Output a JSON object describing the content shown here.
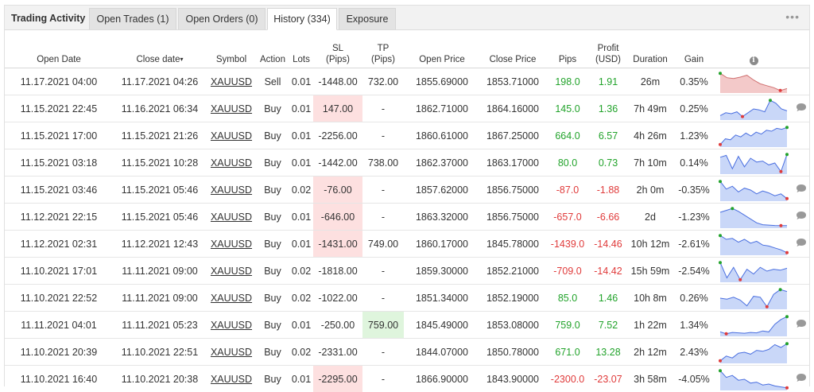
{
  "tabs": [
    {
      "label": "Trading Activity",
      "style": "plain"
    },
    {
      "label": "Open Trades (1)",
      "style": "gray"
    },
    {
      "label": "Open Orders (0)",
      "style": "gray"
    },
    {
      "label": "History (334)",
      "style": "active"
    },
    {
      "label": "Exposure",
      "style": "gray"
    }
  ],
  "menu_icon": "more-dots-icon",
  "headers": {
    "open_date": "Open Date",
    "close_date": "Close date",
    "sort_arrow": "▾",
    "symbol": "Symbol",
    "action": "Action",
    "lots": "Lots",
    "sl_1": "SL",
    "sl_2": "(Pips)",
    "tp_1": "TP",
    "tp_2": "(Pips)",
    "open_price": "Open Price",
    "close_price": "Close Price",
    "pips": "Pips",
    "profit_1": "Profit",
    "profit_2": "(USD)",
    "duration": "Duration",
    "gain": "Gain",
    "info": "i"
  },
  "colors": {
    "positive": "#22a32b",
    "negative": "#e03b3b",
    "sl_highlight": "#fde0e0",
    "tp_highlight": "#dff5dd",
    "spark_up_fill": "#c9d7f8",
    "spark_up_line": "#4a6fe0",
    "spark_down_fill": "#f3c9c9",
    "spark_down_line": "#d07272"
  },
  "rows": [
    {
      "open": "11.17.2021 04:00",
      "close": "11.17.2021 04:26",
      "symbol": "XAUUSD",
      "action": "Sell",
      "lots": "0.01",
      "sl": "-1448.00",
      "sl_hl": false,
      "tp": "732.00",
      "tp_hl": false,
      "open_price": "1855.69000",
      "close_price": "1853.71000",
      "pips": "198.0",
      "profit": "1.91",
      "duration": "26m",
      "gain": "0.35%",
      "positive": true,
      "spark_tone": "down",
      "spark": [
        0.95,
        0.72,
        0.68,
        0.75,
        0.85,
        0.6,
        0.4,
        0.3,
        0.2,
        0.05,
        0.15
      ],
      "comment": false
    },
    {
      "open": "11.15.2021 22:45",
      "close": "11.16.2021 06:34",
      "symbol": "XAUUSD",
      "action": "Buy",
      "lots": "0.01",
      "sl": "147.00",
      "sl_hl": true,
      "tp": "-",
      "tp_hl": false,
      "open_price": "1862.71000",
      "close_price": "1864.16000",
      "pips": "145.0",
      "profit": "1.36",
      "duration": "7h 49m",
      "gain": "0.25%",
      "positive": true,
      "spark_tone": "up",
      "spark": [
        0.15,
        0.3,
        0.25,
        0.35,
        0.1,
        0.3,
        0.5,
        0.45,
        0.35,
        0.95,
        0.8,
        0.5,
        0.4
      ],
      "comment": true
    },
    {
      "open": "11.15.2021 17:00",
      "close": "11.15.2021 21:26",
      "symbol": "XAUUSD",
      "action": "Buy",
      "lots": "0.01",
      "sl": "-2256.00",
      "sl_hl": false,
      "tp": "-",
      "tp_hl": false,
      "open_price": "1860.61000",
      "close_price": "1867.25000",
      "pips": "664.0",
      "profit": "6.57",
      "duration": "4h 26m",
      "gain": "1.23%",
      "positive": true,
      "spark_tone": "up",
      "spark": [
        0.05,
        0.35,
        0.3,
        0.55,
        0.45,
        0.65,
        0.5,
        0.7,
        0.6,
        0.8,
        0.75,
        0.9,
        0.85,
        0.95
      ],
      "comment": false
    },
    {
      "open": "11.15.2021 03:18",
      "close": "11.15.2021 10:28",
      "symbol": "XAUUSD",
      "action": "Buy",
      "lots": "0.01",
      "sl": "-1442.00",
      "sl_hl": false,
      "tp": "738.00",
      "tp_hl": false,
      "open_price": "1862.37000",
      "close_price": "1863.17000",
      "pips": "80.0",
      "profit": "0.73",
      "duration": "7h 10m",
      "gain": "0.14%",
      "positive": true,
      "spark_tone": "up",
      "spark": [
        0.8,
        0.9,
        0.2,
        0.85,
        0.3,
        0.75,
        0.55,
        0.6,
        0.4,
        0.5,
        0.05,
        0.95
      ],
      "comment": false
    },
    {
      "open": "11.15.2021 03:46",
      "close": "11.15.2021 05:46",
      "symbol": "XAUUSD",
      "action": "Buy",
      "lots": "0.02",
      "sl": "-76.00",
      "sl_hl": true,
      "tp": "-",
      "tp_hl": false,
      "open_price": "1857.62000",
      "close_price": "1856.75000",
      "pips": "-87.0",
      "profit": "-1.88",
      "duration": "2h 0m",
      "gain": "-0.35%",
      "positive": false,
      "spark_tone": "up",
      "spark": [
        0.95,
        0.55,
        0.7,
        0.4,
        0.6,
        0.5,
        0.3,
        0.45,
        0.35,
        0.2,
        0.3,
        0.05
      ],
      "comment": true
    },
    {
      "open": "11.12.2021 22:15",
      "close": "11.15.2021 05:46",
      "symbol": "XAUUSD",
      "action": "Buy",
      "lots": "0.01",
      "sl": "-646.00",
      "sl_hl": true,
      "tp": "-",
      "tp_hl": false,
      "open_price": "1863.32000",
      "close_price": "1856.75000",
      "pips": "-657.0",
      "profit": "-6.66",
      "duration": "2d",
      "gain": "-1.23%",
      "positive": false,
      "spark_tone": "up",
      "spark": [
        0.75,
        0.85,
        0.95,
        0.8,
        0.6,
        0.4,
        0.2,
        0.1,
        0.08,
        0.06,
        0.05,
        0.05
      ],
      "comment": true
    },
    {
      "open": "11.12.2021 02:31",
      "close": "11.12.2021 12:43",
      "symbol": "XAUUSD",
      "action": "Buy",
      "lots": "0.01",
      "sl": "-1431.00",
      "sl_hl": true,
      "tp": "749.00",
      "tp_hl": false,
      "open_price": "1860.17000",
      "close_price": "1845.78000",
      "pips": "-1439.0",
      "profit": "-14.46",
      "duration": "10h 12m",
      "gain": "-2.61%",
      "positive": false,
      "spark_tone": "up",
      "spark": [
        0.95,
        0.75,
        0.8,
        0.6,
        0.75,
        0.55,
        0.65,
        0.45,
        0.4,
        0.3,
        0.2,
        0.05
      ],
      "comment": true
    },
    {
      "open": "11.10.2021 17:01",
      "close": "11.11.2021 09:00",
      "symbol": "XAUUSD",
      "action": "Buy",
      "lots": "0.02",
      "sl": "-1818.00",
      "sl_hl": false,
      "tp": "-",
      "tp_hl": false,
      "open_price": "1859.30000",
      "close_price": "1852.21000",
      "pips": "-709.0",
      "profit": "-14.42",
      "duration": "15h 59m",
      "gain": "-2.54%",
      "positive": false,
      "spark_tone": "up",
      "spark": [
        0.95,
        0.15,
        0.7,
        0.05,
        0.6,
        0.35,
        0.7,
        0.5,
        0.6,
        0.55,
        0.65
      ],
      "comment": false
    },
    {
      "open": "11.10.2021 22:52",
      "close": "11.11.2021 09:00",
      "symbol": "XAUUSD",
      "action": "Buy",
      "lots": "0.02",
      "sl": "-1022.00",
      "sl_hl": false,
      "tp": "-",
      "tp_hl": false,
      "open_price": "1851.34000",
      "close_price": "1852.19000",
      "pips": "85.0",
      "profit": "1.46",
      "duration": "10h 8m",
      "gain": "0.26%",
      "positive": true,
      "spark_tone": "up",
      "spark": [
        0.5,
        0.45,
        0.55,
        0.4,
        0.1,
        0.6,
        0.55,
        0.05,
        0.7,
        0.95,
        0.85
      ],
      "comment": false
    },
    {
      "open": "11.11.2021 04:01",
      "close": "11.11.2021 05:23",
      "symbol": "XAUUSD",
      "action": "Buy",
      "lots": "0.01",
      "sl": "-250.00",
      "sl_hl": false,
      "tp": "759.00",
      "tp_hl": true,
      "open_price": "1845.49000",
      "close_price": "1853.08000",
      "pips": "759.0",
      "profit": "7.52",
      "duration": "1h 22m",
      "gain": "1.34%",
      "positive": true,
      "spark_tone": "up",
      "spark": [
        0.15,
        0.05,
        0.12,
        0.1,
        0.08,
        0.12,
        0.1,
        0.2,
        0.15,
        0.55,
        0.8,
        0.95
      ],
      "comment": true
    },
    {
      "open": "11.10.2021 20:39",
      "close": "11.10.2021 22:51",
      "symbol": "XAUUSD",
      "action": "Buy",
      "lots": "0.02",
      "sl": "-2331.00",
      "sl_hl": false,
      "tp": "-",
      "tp_hl": false,
      "open_price": "1844.07000",
      "close_price": "1850.78000",
      "pips": "671.0",
      "profit": "13.28",
      "duration": "2h 12m",
      "gain": "2.43%",
      "positive": true,
      "spark_tone": "up",
      "spark": [
        0.05,
        0.3,
        0.2,
        0.45,
        0.5,
        0.4,
        0.6,
        0.55,
        0.65,
        0.9,
        0.75,
        0.95
      ],
      "comment": false
    },
    {
      "open": "11.10.2021 16:40",
      "close": "11.10.2021 20:38",
      "symbol": "XAUUSD",
      "action": "Buy",
      "lots": "0.01",
      "sl": "-2295.00",
      "sl_hl": true,
      "tp": "-",
      "tp_hl": false,
      "open_price": "1866.90000",
      "close_price": "1843.90000",
      "pips": "-2300.0",
      "profit": "-23.07",
      "duration": "3h 58m",
      "gain": "-4.05%",
      "positive": false,
      "spark_tone": "up",
      "spark": [
        0.95,
        0.6,
        0.7,
        0.45,
        0.5,
        0.3,
        0.35,
        0.2,
        0.25,
        0.15,
        0.1,
        0.05
      ],
      "comment": true
    }
  ]
}
